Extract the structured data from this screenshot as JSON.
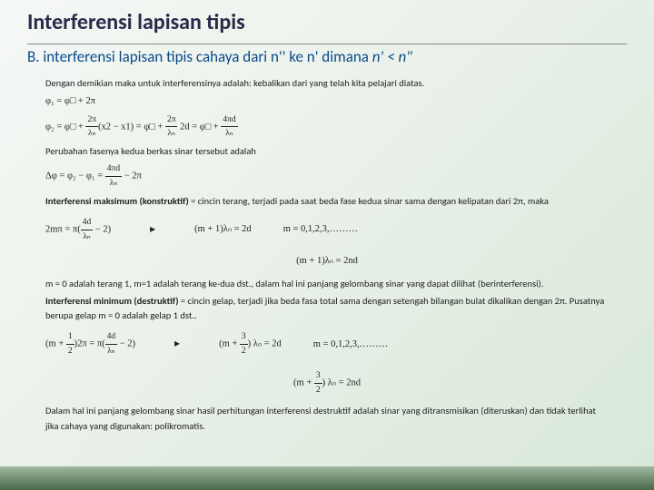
{
  "header": {
    "title": "Interferensi lapisan tipis",
    "subtitle_prefix": "B. interferensi lapisan tipis cahaya dari n'' ke n' dimana ",
    "subtitle_italic": "n' < n\""
  },
  "content": {
    "intro": "Dengan demikian maka untuk interferensinya adalah: kebalikan dari yang telah kita pelajari diatas.",
    "phi1": "φ₁ = φ□ + 2π",
    "phi2_a": "φ₂ = φ□ + ",
    "phi2_frac_n": "2π",
    "phi2_frac_d": "λₙ",
    "phi2_b": "(x2 − x1) = φ□ + ",
    "phi2_c": " 2d = φ□ + ",
    "phi2_frac2_n": "4πd",
    "phi2_frac2_d": "λₙ",
    "phase_change": "Perubahan fasenya kedua berkas sinar tersebut adalah",
    "delta_a": "Δφ = φ₂ − φ₁ = ",
    "delta_frac_n": "4πd",
    "delta_frac_d": "λₙ",
    "delta_b": " − 2π",
    "constructive_title": "Interferensi maksimum (konstruktif)",
    "constructive_body": " = cincin terang, terjadi pada saat beda fase kedua sinar sama dengan kelipatan dari 2π, maka",
    "constr_eq_a": "2mπ = π(",
    "constr_frac_n": "4d",
    "constr_frac_d": "λₙ",
    "constr_eq_b": " − 2)",
    "constr_arrow": "▸",
    "constr_result": "(m + 1)λₙ = 2d",
    "constr_m": "m = 0,1,2,3,………",
    "constr_result2": "(m + 1)λₙ = 2nd",
    "terang_text": "m = 0 adalah terang 1, m=1 adalah terang ke-dua dst., dalam hal ini panjang gelombang sinar yang dapat dilihat (berinterferensi).",
    "destructive_title": "Interferensi minimum (destruktif)",
    "destructive_body": " = cincin gelap, terjadi jika beda fasa total sama dengan setengah bilangan bulat dikalikan dengan 2π. Pusatnya berupa gelap m = 0 adalah gelap 1 dst..",
    "destr_eq_a": "(m + ",
    "destr_half": "½",
    "destr_eq_b": ")2π = π(",
    "destr_eq_c": " − 2)",
    "destr_result_a": "(m + ",
    "destr_result_b": ") λₙ = 2d",
    "destr_m": "m = 0,1,2,3,………",
    "destr_result2_a": "(m + ",
    "destr_result2_b": ") λₙ = 2nd",
    "conclusion": "Dalam hal ini panjang gelombang sinar hasil perhitungan interferensi destruktif adalah sinar yang ditransmisikan (diteruskan) dan tidak terlihat jika cahaya yang digunakan: polikromatis."
  }
}
